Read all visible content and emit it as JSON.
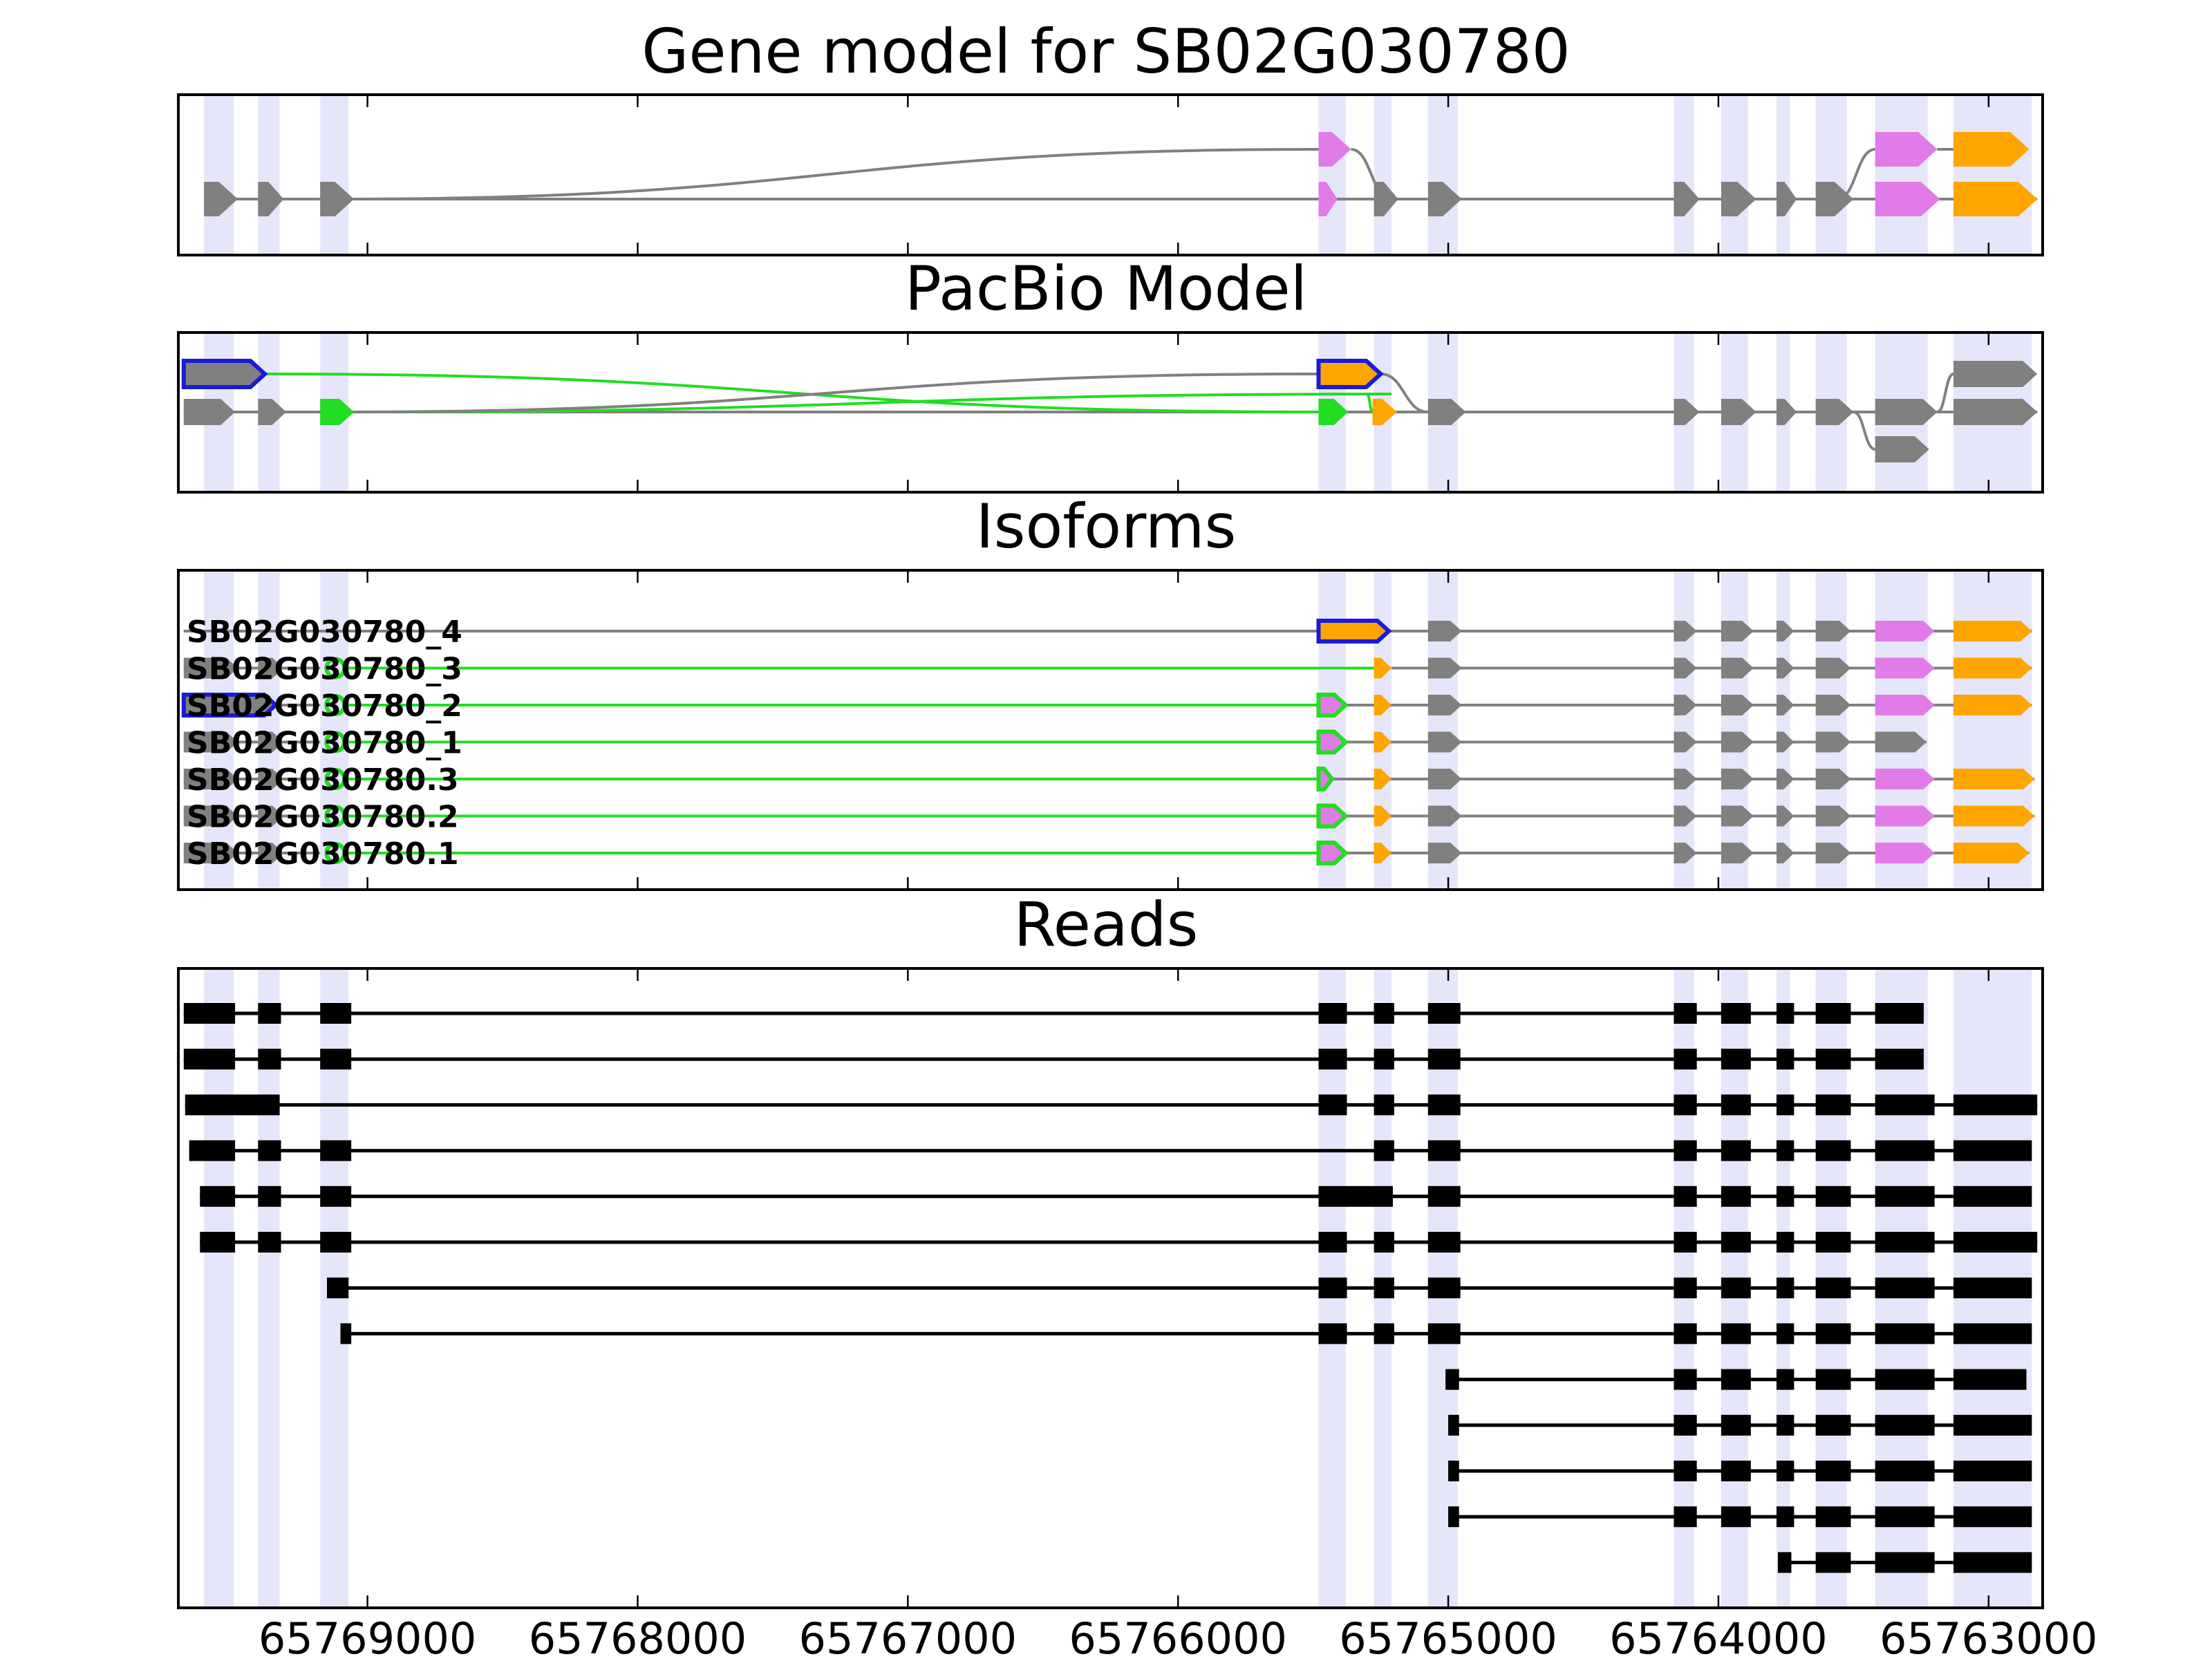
{
  "title": "Gene model for SB02G030780",
  "panels": {
    "gene": "Gene model for SB02G030780",
    "pacbio": "PacBio Model",
    "isoforms": "Isoforms",
    "reads": "Reads"
  },
  "colors": {
    "intron": "#808080",
    "exon_gray": "#808080",
    "exon_violet": "#e07be8",
    "exon_orange": "#ffa500",
    "novel_green": "#22dd22",
    "pacbio_blue": "#1a1ad9",
    "read": "#000000",
    "shade": "#e6e6fa"
  },
  "x_axis": {
    "direction": "reversed",
    "min": 65769700,
    "max": 65762800,
    "ticks": [
      65769000,
      65768000,
      65767000,
      65766000,
      65765000,
      65764000,
      65763000
    ],
    "tick_labels": [
      "65769000",
      "65768000",
      "65767000",
      "65766000",
      "65765000",
      "65764000",
      "65763000"
    ]
  },
  "shaded_exons": [
    [
      65769605,
      65769495
    ],
    [
      65769405,
      65769325
    ],
    [
      65769175,
      65769070
    ],
    [
      65765480,
      65765380
    ],
    [
      65765275,
      65765210
    ],
    [
      65765075,
      65764965
    ],
    [
      65764165,
      65764090
    ],
    [
      65763990,
      65763890
    ],
    [
      65763785,
      65763735
    ],
    [
      65763640,
      65763525
    ],
    [
      65763420,
      65763225
    ],
    [
      65763130,
      65762840
    ]
  ],
  "gene_model": {
    "lanes": [
      {
        "exons": [
          [
            65765480,
            65765370,
            "violet"
          ],
          [
            65765275,
            65765210,
            "gray"
          ],
          [
            65765075,
            65764960,
            "gray"
          ],
          [
            65764165,
            65764090,
            "gray"
          ],
          [
            65763990,
            65763880,
            "gray"
          ],
          [
            65763785,
            65763725,
            "gray"
          ],
          [
            65763640,
            65763525,
            "gray"
          ],
          [
            65763420,
            65763190,
            "violet"
          ],
          [
            65763130,
            65762840,
            "orange"
          ]
        ]
      }
    ],
    "upper": {
      "exons": [
        [
          65765480,
          65765360,
          "violet"
        ],
        [
          65763420,
          65763190,
          "violet"
        ],
        [
          65763130,
          65762850,
          "orange"
        ]
      ]
    },
    "lower": {
      "exons": [
        [
          65769605,
          65769480,
          "gray"
        ],
        [
          65769405,
          65769310,
          "gray"
        ],
        [
          65769175,
          65769050,
          "gray"
        ],
        [
          65765480,
          65765410,
          "violet"
        ],
        [
          65765275,
          65765185,
          "gray"
        ],
        [
          65765075,
          65764950,
          "gray"
        ],
        [
          65764165,
          65764070,
          "gray"
        ],
        [
          65763990,
          65763860,
          "gray"
        ],
        [
          65763785,
          65763710,
          "gray"
        ],
        [
          65763640,
          65763500,
          "gray"
        ],
        [
          65763420,
          65763180,
          "violet"
        ],
        [
          65763130,
          65762820,
          "orange"
        ]
      ]
    }
  },
  "pacbio_model": {
    "upper": {
      "exons": [
        [
          65769680,
          65769380,
          "gray",
          "blue"
        ],
        [
          65765480,
          65765250,
          "orange",
          "blue"
        ],
        [
          65763130,
          65762820,
          "gray",
          ""
        ]
      ]
    },
    "lower": {
      "exons": [
        [
          65769680,
          65769490,
          "gray",
          ""
        ],
        [
          65769405,
          65769300,
          "gray",
          ""
        ],
        [
          65769175,
          65769050,
          "green",
          ""
        ],
        [
          65765480,
          65765370,
          "green",
          ""
        ],
        [
          65765280,
          65765190,
          "orange",
          ""
        ],
        [
          65765075,
          65764935,
          "gray",
          ""
        ],
        [
          65764165,
          65764070,
          "gray",
          ""
        ],
        [
          65763990,
          65763860,
          "gray",
          ""
        ],
        [
          65763785,
          65763710,
          "gray",
          ""
        ],
        [
          65763640,
          65763500,
          "gray",
          ""
        ],
        [
          65763420,
          65763190,
          "gray",
          ""
        ],
        [
          65763130,
          65762820,
          "gray",
          ""
        ]
      ]
    },
    "bottom": {
      "exons": [
        [
          65763420,
          65763220,
          "gray",
          ""
        ]
      ]
    }
  },
  "isoforms": [
    {
      "label": "SB02G030780_4",
      "exons": [
        [
          65765480,
          65765220,
          "orange",
          "blue"
        ],
        [
          65765075,
          65764950,
          "gray",
          ""
        ],
        [
          65764165,
          65764080,
          "gray",
          ""
        ],
        [
          65763990,
          65763870,
          "gray",
          ""
        ],
        [
          65763785,
          65763720,
          "gray",
          ""
        ],
        [
          65763640,
          65763510,
          "gray",
          ""
        ],
        [
          65763420,
          65763200,
          "violet",
          ""
        ],
        [
          65763130,
          65762840,
          "orange",
          ""
        ]
      ]
    },
    {
      "label": "SB02G030780_3",
      "exons": [
        [
          65769680,
          65769480,
          "gray",
          ""
        ],
        [
          65769405,
          65769310,
          "gray",
          ""
        ],
        [
          65769175,
          65769070,
          "green",
          ""
        ],
        [
          65765275,
          65765210,
          "orange",
          ""
        ],
        [
          65765075,
          65764950,
          "gray",
          ""
        ],
        [
          65764165,
          65764080,
          "gray",
          ""
        ],
        [
          65763990,
          65763870,
          "gray",
          ""
        ],
        [
          65763785,
          65763720,
          "gray",
          ""
        ],
        [
          65763640,
          65763510,
          "gray",
          ""
        ],
        [
          65763420,
          65763200,
          "violet",
          ""
        ],
        [
          65763130,
          65762840,
          "orange",
          ""
        ]
      ]
    },
    {
      "label": "SB02G030780_2",
      "exons": [
        [
          65769680,
          65769340,
          "gray",
          "blue"
        ],
        [
          65769175,
          65769070,
          "green",
          ""
        ],
        [
          65765480,
          65765380,
          "violet",
          "green"
        ],
        [
          65765275,
          65765210,
          "orange",
          ""
        ],
        [
          65765075,
          65764950,
          "gray",
          ""
        ],
        [
          65764165,
          65764080,
          "gray",
          ""
        ],
        [
          65763990,
          65763870,
          "gray",
          ""
        ],
        [
          65763785,
          65763720,
          "gray",
          ""
        ],
        [
          65763640,
          65763510,
          "gray",
          ""
        ],
        [
          65763420,
          65763200,
          "violet",
          ""
        ],
        [
          65763130,
          65762840,
          "orange",
          ""
        ]
      ]
    },
    {
      "label": "SB02G030780_1",
      "exons": [
        [
          65769680,
          65769480,
          "gray",
          ""
        ],
        [
          65769405,
          65769310,
          "gray",
          ""
        ],
        [
          65769175,
          65769070,
          "green",
          ""
        ],
        [
          65765480,
          65765380,
          "violet",
          "green"
        ],
        [
          65765275,
          65765210,
          "orange",
          ""
        ],
        [
          65765075,
          65764950,
          "gray",
          ""
        ],
        [
          65764165,
          65764080,
          "gray",
          ""
        ],
        [
          65763990,
          65763870,
          "gray",
          ""
        ],
        [
          65763785,
          65763720,
          "gray",
          ""
        ],
        [
          65763640,
          65763510,
          "gray",
          ""
        ],
        [
          65763420,
          65763230,
          "gray",
          ""
        ]
      ]
    },
    {
      "label": "SB02G030780.3",
      "exons": [
        [
          65769680,
          65769480,
          "gray",
          ""
        ],
        [
          65769405,
          65769310,
          "gray",
          ""
        ],
        [
          65769175,
          65769070,
          "green",
          ""
        ],
        [
          65765480,
          65765430,
          "violet",
          "green"
        ],
        [
          65765275,
          65765210,
          "orange",
          ""
        ],
        [
          65765075,
          65764950,
          "gray",
          ""
        ],
        [
          65764165,
          65764080,
          "gray",
          ""
        ],
        [
          65763990,
          65763870,
          "gray",
          ""
        ],
        [
          65763785,
          65763720,
          "gray",
          ""
        ],
        [
          65763640,
          65763510,
          "gray",
          ""
        ],
        [
          65763420,
          65763200,
          "violet",
          ""
        ],
        [
          65763130,
          65762830,
          "orange",
          ""
        ]
      ]
    },
    {
      "label": "SB02G030780.2",
      "exons": [
        [
          65769680,
          65769480,
          "gray",
          ""
        ],
        [
          65769405,
          65769310,
          "gray",
          ""
        ],
        [
          65769175,
          65769070,
          "green",
          ""
        ],
        [
          65765480,
          65765380,
          "violet",
          "green"
        ],
        [
          65765275,
          65765210,
          "orange",
          ""
        ],
        [
          65765075,
          65764950,
          "gray",
          ""
        ],
        [
          65764165,
          65764080,
          "gray",
          ""
        ],
        [
          65763990,
          65763870,
          "gray",
          ""
        ],
        [
          65763785,
          65763720,
          "gray",
          ""
        ],
        [
          65763640,
          65763510,
          "gray",
          ""
        ],
        [
          65763420,
          65763200,
          "violet",
          ""
        ],
        [
          65763130,
          65762830,
          "orange",
          ""
        ]
      ]
    },
    {
      "label": "SB02G030780.1",
      "exons": [
        [
          65769680,
          65769480,
          "gray",
          ""
        ],
        [
          65769405,
          65769310,
          "gray",
          ""
        ],
        [
          65769175,
          65769070,
          "green",
          ""
        ],
        [
          65765480,
          65765380,
          "violet",
          "green"
        ],
        [
          65765275,
          65765210,
          "orange",
          ""
        ],
        [
          65765075,
          65764950,
          "gray",
          ""
        ],
        [
          65764165,
          65764080,
          "gray",
          ""
        ],
        [
          65763990,
          65763870,
          "gray",
          ""
        ],
        [
          65763785,
          65763720,
          "gray",
          ""
        ],
        [
          65763640,
          65763510,
          "gray",
          ""
        ],
        [
          65763420,
          65763200,
          "violet",
          ""
        ],
        [
          65763130,
          65762850,
          "orange",
          ""
        ]
      ]
    }
  ],
  "reads": [
    [
      [
        65769680,
        65769490
      ],
      [
        65769405,
        65769320
      ],
      [
        65769175,
        65769060
      ],
      [
        65765480,
        65765375
      ],
      [
        65765275,
        65765200
      ],
      [
        65765075,
        65764955
      ],
      [
        65764165,
        65764080
      ],
      [
        65763990,
        65763880
      ],
      [
        65763785,
        65763720
      ],
      [
        65763640,
        65763510
      ],
      [
        65763420,
        65763240
      ]
    ],
    [
      [
        65769680,
        65769490
      ],
      [
        65769405,
        65769320
      ],
      [
        65769175,
        65769060
      ],
      [
        65765480,
        65765375
      ],
      [
        65765275,
        65765200
      ],
      [
        65765075,
        65764955
      ],
      [
        65764165,
        65764080
      ],
      [
        65763990,
        65763880
      ],
      [
        65763785,
        65763720
      ],
      [
        65763640,
        65763510
      ],
      [
        65763420,
        65763240
      ]
    ],
    [
      [
        65769675,
        65769325
      ],
      [
        65765480,
        65765375
      ],
      [
        65765275,
        65765200
      ],
      [
        65765075,
        65764955
      ],
      [
        65764165,
        65764080
      ],
      [
        65763990,
        65763880
      ],
      [
        65763785,
        65763720
      ],
      [
        65763640,
        65763510
      ],
      [
        65763420,
        65763200
      ],
      [
        65763130,
        65762820
      ]
    ],
    [
      [
        65769660,
        65769490
      ],
      [
        65769405,
        65769320
      ],
      [
        65769175,
        65769060
      ],
      [
        65765275,
        65765200
      ],
      [
        65765075,
        65764955
      ],
      [
        65764165,
        65764080
      ],
      [
        65763990,
        65763880
      ],
      [
        65763785,
        65763720
      ],
      [
        65763640,
        65763510
      ],
      [
        65763420,
        65763200
      ],
      [
        65763130,
        65762840
      ]
    ],
    [
      [
        65769620,
        65769490
      ],
      [
        65769405,
        65769320
      ],
      [
        65769175,
        65769060
      ],
      [
        65765480,
        65765205
      ],
      [
        65765075,
        65764955
      ],
      [
        65764165,
        65764080
      ],
      [
        65763990,
        65763880
      ],
      [
        65763785,
        65763720
      ],
      [
        65763640,
        65763510
      ],
      [
        65763420,
        65763200
      ],
      [
        65763130,
        65762840
      ]
    ],
    [
      [
        65769620,
        65769490
      ],
      [
        65769405,
        65769320
      ],
      [
        65769175,
        65769060
      ],
      [
        65765480,
        65765375
      ],
      [
        65765275,
        65765200
      ],
      [
        65765075,
        65764955
      ],
      [
        65764165,
        65764080
      ],
      [
        65763990,
        65763880
      ],
      [
        65763785,
        65763720
      ],
      [
        65763640,
        65763510
      ],
      [
        65763420,
        65763200
      ],
      [
        65763130,
        65762820
      ]
    ],
    [
      [
        65769150,
        65769070
      ],
      [
        65765480,
        65765375
      ],
      [
        65765275,
        65765200
      ],
      [
        65765075,
        65764955
      ],
      [
        65764165,
        65764080
      ],
      [
        65763990,
        65763880
      ],
      [
        65763785,
        65763720
      ],
      [
        65763640,
        65763510
      ],
      [
        65763420,
        65763200
      ],
      [
        65763130,
        65762840
      ]
    ],
    [
      [
        65769100,
        65769060
      ],
      [
        65765480,
        65765375
      ],
      [
        65765275,
        65765200
      ],
      [
        65765075,
        65764955
      ],
      [
        65764165,
        65764080
      ],
      [
        65763990,
        65763880
      ],
      [
        65763785,
        65763720
      ],
      [
        65763640,
        65763510
      ],
      [
        65763420,
        65763200
      ],
      [
        65763130,
        65762840
      ]
    ],
    [
      [
        65765010,
        65764960
      ],
      [
        65764165,
        65764080
      ],
      [
        65763990,
        65763880
      ],
      [
        65763785,
        65763720
      ],
      [
        65763640,
        65763510
      ],
      [
        65763420,
        65763200
      ],
      [
        65763130,
        65762860
      ]
    ],
    [
      [
        65765000,
        65764960
      ],
      [
        65764165,
        65764080
      ],
      [
        65763990,
        65763880
      ],
      [
        65763785,
        65763720
      ],
      [
        65763640,
        65763510
      ],
      [
        65763420,
        65763200
      ],
      [
        65763130,
        65762840
      ]
    ],
    [
      [
        65765000,
        65764960
      ],
      [
        65764165,
        65764080
      ],
      [
        65763990,
        65763880
      ],
      [
        65763785,
        65763720
      ],
      [
        65763640,
        65763510
      ],
      [
        65763420,
        65763200
      ],
      [
        65763130,
        65762840
      ]
    ],
    [
      [
        65765000,
        65764960
      ],
      [
        65764165,
        65764080
      ],
      [
        65763990,
        65763880
      ],
      [
        65763785,
        65763720
      ],
      [
        65763640,
        65763510
      ],
      [
        65763420,
        65763200
      ],
      [
        65763130,
        65762840
      ]
    ],
    [
      [
        65763780,
        65763730
      ],
      [
        65763640,
        65763510
      ],
      [
        65763420,
        65763200
      ],
      [
        65763130,
        65762840
      ]
    ]
  ]
}
